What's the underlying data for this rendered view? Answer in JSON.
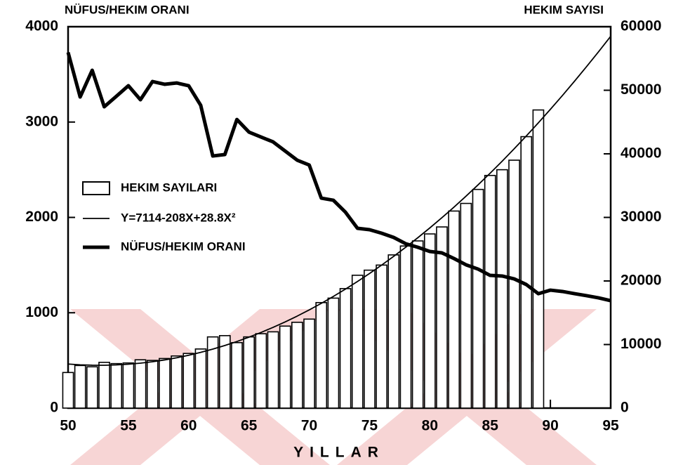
{
  "chart_data": {
    "type": "bar_line",
    "y_label": "NÜFUS/HEKIM ORANI",
    "y2_label": "HEKIM SAYISI",
    "x_label": "YILLAR",
    "x": [
      50,
      51,
      52,
      53,
      54,
      55,
      56,
      57,
      58,
      59,
      60,
      61,
      62,
      63,
      64,
      65,
      66,
      67,
      68,
      69,
      70,
      71,
      72,
      73,
      74,
      75,
      76,
      77,
      78,
      79,
      80,
      81,
      82,
      83,
      84,
      85,
      86,
      87,
      88,
      89,
      90,
      91,
      92,
      93,
      94,
      95
    ],
    "series": [
      {
        "name": "HEKIM SAYILARI",
        "kind": "bar",
        "axis": "y2",
        "color": "#000000",
        "values": [
          5600,
          6700,
          6500,
          7200,
          7000,
          7100,
          7600,
          7500,
          7800,
          8200,
          8600,
          9300,
          11200,
          11400,
          10300,
          11200,
          11700,
          12000,
          12900,
          13500,
          14000,
          16600,
          17300,
          18800,
          20900,
          21700,
          22500,
          24100,
          25500,
          26300,
          27400,
          28500,
          31000,
          32200,
          34400,
          36600,
          37500,
          39000,
          42700,
          46900,
          null,
          null,
          null,
          null,
          null,
          null
        ]
      },
      {
        "name": "Y=7114-208X+28.8X²",
        "kind": "thin-line",
        "axis": "y2",
        "color": "#000000",
        "values": [
          6935,
          6813,
          6749,
          6743,
          6794,
          6903,
          7069,
          7293,
          7575,
          7914,
          8311,
          8765,
          9277,
          9847,
          10474,
          11159,
          11901,
          12701,
          13559,
          14474,
          15447,
          16477,
          17565,
          18711,
          19914,
          21175,
          22493,
          23869,
          25303,
          26794,
          28343,
          29949,
          31613,
          33335,
          35114,
          36951,
          38845,
          40797,
          42807,
          44874,
          46999,
          49181,
          51421,
          53719,
          56074,
          58487
        ]
      },
      {
        "name": "NÜFUS/HEKIM ORANI",
        "kind": "thick-line",
        "axis": "y",
        "color": "#000000",
        "values": [
          3730,
          3263,
          3543,
          3160,
          3270,
          3381,
          3234,
          3425,
          3396,
          3410,
          3381,
          3175,
          2644,
          2659,
          3027,
          2895,
          2843,
          2792,
          2696,
          2600,
          2549,
          2202,
          2180,
          2055,
          1886,
          1871,
          1834,
          1790,
          1724,
          1687,
          1643,
          1628,
          1569,
          1503,
          1458,
          1392,
          1385,
          1355,
          1296,
          1200,
          1237,
          1223,
          1200,
          1179,
          1156,
          1127
        ]
      }
    ],
    "xlim": [
      50,
      95
    ],
    "xticks": [
      50,
      55,
      60,
      65,
      70,
      75,
      80,
      85,
      90,
      95
    ],
    "ylim": [
      0,
      4000
    ],
    "yticks": [
      0,
      1000,
      2000,
      3000,
      4000
    ],
    "y2lim": [
      0,
      60000
    ],
    "y2ticks": [
      0,
      10000,
      20000,
      30000,
      40000,
      50000,
      60000
    ]
  }
}
